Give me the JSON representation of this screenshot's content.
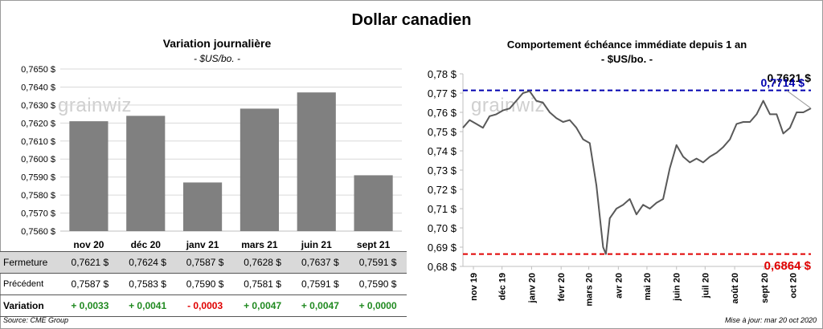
{
  "title": "Dollar canadien",
  "left": {
    "title": "Variation  journalière",
    "unit": "- $US/bo. -",
    "watermark": "grainwiz"
  },
  "right": {
    "title": "Comportement échéance immédiate depuis 1 an",
    "unit": "- $US/bo. -",
    "watermark": "grainwiz",
    "labels": {
      "high": "0,7714 $",
      "low": "0,6864 $",
      "last": "0,7621 $"
    }
  },
  "table": {
    "rows": [
      {
        "label": "Fermeture",
        "values": [
          "0,7621  $",
          "0,7624  $",
          "0,7587  $",
          "0,7628  $",
          "0,7637  $",
          "0,7591  $"
        ]
      },
      {
        "label": "Précédent",
        "values": [
          "0,7587  $",
          "0,7583  $",
          "0,7590  $",
          "0,7581  $",
          "0,7591  $",
          "0,7590  $"
        ]
      },
      {
        "label": "Variation",
        "values": [
          "+ 0,0033",
          "+ 0,0041",
          "- 0,0003",
          "+ 0,0047",
          "+ 0,0047",
          "+ 0,0000"
        ]
      }
    ]
  },
  "footer": {
    "source": "Source: CME Group",
    "updated": "Mise à jour: mar 20 oct 2020"
  },
  "colors": {
    "bar": "#808080",
    "line": "#595959",
    "high_line": "#0000b0",
    "low_line": "#e00000",
    "positive": "#218a21",
    "negative": "#e00000"
  },
  "chart_data": [
    {
      "type": "bar",
      "categories": [
        "nov 20",
        "déc 20",
        "janv 21",
        "mars 21",
        "juin 21",
        "sept 21"
      ],
      "values": [
        0.7621,
        0.7624,
        0.7587,
        0.7628,
        0.7637,
        0.7591
      ],
      "ylim": [
        0.756,
        0.765
      ],
      "yticks": [
        "0,7560 $",
        "0,7570 $",
        "0,7580 $",
        "0,7590 $",
        "0,7600 $",
        "0,7610 $",
        "0,7620 $",
        "0,7630 $",
        "0,7640 $",
        "0,7650 $"
      ],
      "grid": true
    },
    {
      "type": "line",
      "x": [
        "2019-10-21",
        "2019-10-28",
        "2019-11-04",
        "2019-11-11",
        "2019-11-18",
        "2019-11-25",
        "2019-12-02",
        "2019-12-09",
        "2019-12-16",
        "2019-12-23",
        "2019-12-30",
        "2020-01-06",
        "2020-01-13",
        "2020-01-20",
        "2020-01-27",
        "2020-02-03",
        "2020-02-10",
        "2020-02-17",
        "2020-02-24",
        "2020-03-02",
        "2020-03-09",
        "2020-03-16",
        "2020-03-19",
        "2020-03-23",
        "2020-03-30",
        "2020-04-06",
        "2020-04-13",
        "2020-04-20",
        "2020-04-27",
        "2020-05-04",
        "2020-05-11",
        "2020-05-18",
        "2020-05-25",
        "2020-06-01",
        "2020-06-08",
        "2020-06-15",
        "2020-06-22",
        "2020-06-29",
        "2020-07-06",
        "2020-07-13",
        "2020-07-20",
        "2020-07-27",
        "2020-08-03",
        "2020-08-10",
        "2020-08-17",
        "2020-08-24",
        "2020-08-31",
        "2020-09-07",
        "2020-09-14",
        "2020-09-21",
        "2020-09-28",
        "2020-10-05",
        "2020-10-12",
        "2020-10-20"
      ],
      "y": [
        0.752,
        0.756,
        0.754,
        0.752,
        0.758,
        0.759,
        0.761,
        0.762,
        0.766,
        0.77,
        0.771,
        0.766,
        0.765,
        0.76,
        0.757,
        0.755,
        0.756,
        0.752,
        0.746,
        0.744,
        0.722,
        0.69,
        0.6864,
        0.705,
        0.71,
        0.712,
        0.715,
        0.707,
        0.712,
        0.71,
        0.713,
        0.715,
        0.731,
        0.743,
        0.737,
        0.734,
        0.736,
        0.734,
        0.737,
        0.739,
        0.742,
        0.746,
        0.754,
        0.755,
        0.755,
        0.759,
        0.766,
        0.759,
        0.759,
        0.749,
        0.752,
        0.76,
        0.76,
        0.7621
      ],
      "ylim": [
        0.68,
        0.78
      ],
      "yticks": [
        "0,68 $",
        "0,69 $",
        "0,70 $",
        "0,71 $",
        "0,72 $",
        "0,73 $",
        "0,74 $",
        "0,75 $",
        "0,76 $",
        "0,77 $",
        "0,78 $"
      ],
      "xticks": [
        "nov 19",
        "déc 19",
        "janv 20",
        "févr 20",
        "mars 20",
        "avr 20",
        "mai 20",
        "juin 20",
        "juil 20",
        "août 20",
        "sept 20",
        "oct 20"
      ],
      "xtick_dates": [
        "2019-11-01",
        "2019-12-01",
        "2020-01-01",
        "2020-02-01",
        "2020-03-01",
        "2020-04-01",
        "2020-05-01",
        "2020-06-01",
        "2020-07-01",
        "2020-08-01",
        "2020-09-01",
        "2020-10-01"
      ],
      "reference_lines": [
        {
          "value": 0.7714,
          "label": "0,7714 $"
        },
        {
          "value": 0.6864,
          "label": "0,6864 $"
        }
      ],
      "last_value": 0.7621,
      "grid": false
    }
  ]
}
